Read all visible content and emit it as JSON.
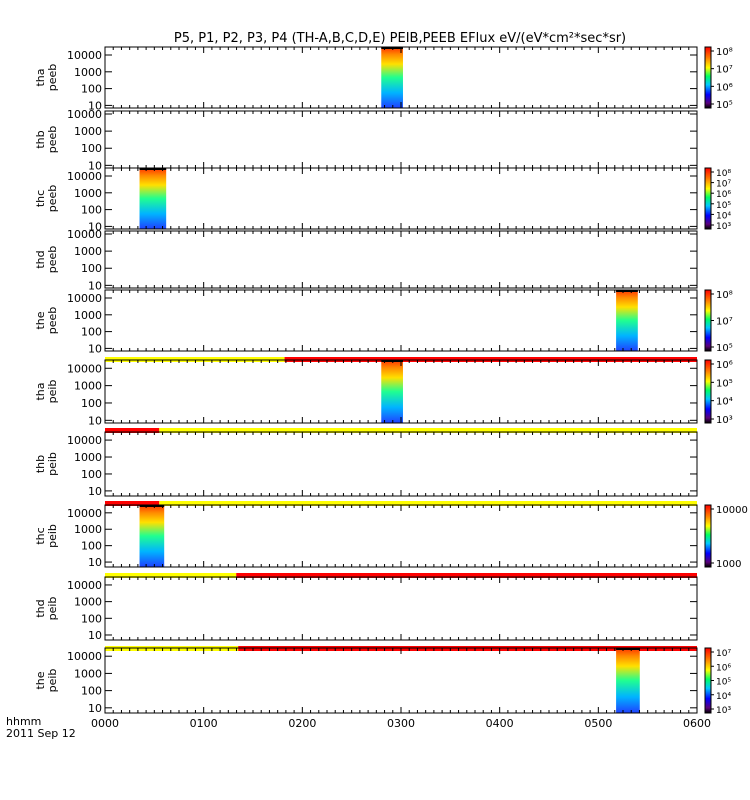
{
  "title": "P5, P1, P2, P3, P4 (TH-A,B,C,D,E) PEIB,PEEB EFlux eV/(eV*cm²*sec*sr)",
  "time_axis": {
    "label_line1": "hhmm",
    "label_line2": "2011 Sep 12",
    "ticks": [
      "0000",
      "0100",
      "0200",
      "0300",
      "0400",
      "0500",
      "0600"
    ],
    "range_hours": [
      0,
      6
    ]
  },
  "colors": {
    "flag_yellow": "#ffff00",
    "flag_red": "#ff0000"
  },
  "chart_data": [
    {
      "type": "heatmap",
      "probe": "tha",
      "product": "peeb",
      "ylabel": [
        "tha",
        "peeb"
      ],
      "yscale": "log",
      "ylim": [
        7,
        30000
      ],
      "yticks": [
        "10",
        "100",
        "1000",
        "10000"
      ],
      "data_interval_hours": [
        2.8,
        3.02
      ],
      "colorbar": [
        "10⁵",
        "10⁶",
        "10⁷",
        "10⁸"
      ],
      "clim_exp": [
        5,
        8
      ]
    },
    {
      "type": "heatmap",
      "probe": "thb",
      "product": "peeb",
      "ylabel": [
        "thb",
        "peeb"
      ],
      "yscale": "log",
      "ylim": [
        7,
        15000
      ],
      "yticks": [
        "10",
        "100",
        "1000",
        "10000"
      ],
      "data_interval_hours": null,
      "colorbar": []
    },
    {
      "type": "heatmap",
      "probe": "thc",
      "product": "peeb",
      "ylabel": [
        "thc",
        "peeb"
      ],
      "yscale": "log",
      "ylim": [
        7,
        30000
      ],
      "yticks": [
        "10",
        "100",
        "1000",
        "10000"
      ],
      "data_interval_hours": [
        0.35,
        0.62
      ],
      "colorbar": [
        "10³",
        "10⁴",
        "10⁵",
        "10⁶",
        "10⁷",
        "10⁸"
      ],
      "clim_exp": [
        3,
        8
      ]
    },
    {
      "type": "heatmap",
      "probe": "thd",
      "product": "peeb",
      "ylabel": [
        "thd",
        "peeb"
      ],
      "yscale": "log",
      "ylim": [
        7,
        15000
      ],
      "yticks": [
        "10",
        "100",
        "1000",
        "10000"
      ],
      "data_interval_hours": null,
      "colorbar": []
    },
    {
      "type": "heatmap",
      "probe": "the",
      "product": "peeb",
      "ylabel": [
        "the",
        "peeb"
      ],
      "yscale": "log",
      "ylim": [
        7,
        30000
      ],
      "yticks": [
        "10",
        "100",
        "1000",
        "10000"
      ],
      "data_interval_hours": [
        5.18,
        5.4
      ],
      "colorbar": [
        "10⁵",
        "10⁷",
        "10⁸"
      ],
      "clim_exp": [
        4.5,
        8
      ]
    },
    {
      "type": "heatmap",
      "probe": "tha",
      "product": "peib",
      "ylabel": [
        "tha",
        "peib"
      ],
      "yscale": "log",
      "ylim": [
        7,
        30000
      ],
      "yticks": [
        "10",
        "100",
        "1000",
        "10000"
      ],
      "data_interval_hours": [
        2.8,
        3.02
      ],
      "colorbar": [
        "10³",
        "10⁴",
        "10⁵",
        "10⁶"
      ],
      "clim_exp": [
        3,
        6.5
      ],
      "flag_bar": [
        {
          "start": 0,
          "end": 1.82,
          "color": "yellow"
        },
        {
          "start": 1.82,
          "end": 6,
          "color": "red"
        }
      ]
    },
    {
      "type": "heatmap",
      "probe": "thb",
      "product": "peib",
      "ylabel": [
        "thb",
        "peib"
      ],
      "yscale": "log",
      "ylim": [
        5,
        30000
      ],
      "yticks": [
        "10",
        "100",
        "1000",
        "10000"
      ],
      "data_interval_hours": null,
      "colorbar": [],
      "flag_bar": [
        {
          "start": 0,
          "end": 0.55,
          "color": "red"
        },
        {
          "start": 0.55,
          "end": 6,
          "color": "yellow"
        }
      ]
    },
    {
      "type": "heatmap",
      "probe": "thc",
      "product": "peib",
      "ylabel": [
        "thc",
        "peib"
      ],
      "yscale": "log",
      "ylim": [
        5,
        30000
      ],
      "yticks": [
        "10",
        "100",
        "1000",
        "10000"
      ],
      "data_interval_hours": [
        0.35,
        0.6
      ],
      "colorbar": [
        "1000",
        "10000"
      ],
      "clim_exp": [
        2.7,
        4.7
      ],
      "flag_bar": [
        {
          "start": 0,
          "end": 0.55,
          "color": "red"
        },
        {
          "start": 0.55,
          "end": 6,
          "color": "yellow"
        }
      ]
    },
    {
      "type": "heatmap",
      "probe": "thd",
      "product": "peib",
      "ylabel": [
        "thd",
        "peib"
      ],
      "yscale": "log",
      "ylim": [
        5,
        30000
      ],
      "yticks": [
        "10",
        "100",
        "1000",
        "10000"
      ],
      "data_interval_hours": null,
      "colorbar": [],
      "flag_bar": [
        {
          "start": 0,
          "end": 1.33,
          "color": "yellow"
        },
        {
          "start": 1.33,
          "end": 6,
          "color": "red"
        }
      ]
    },
    {
      "type": "heatmap",
      "probe": "the",
      "product": "peib",
      "ylabel": [
        "the",
        "peib"
      ],
      "yscale": "log",
      "ylim": [
        5,
        30000
      ],
      "yticks": [
        "10",
        "100",
        "1000",
        "10000"
      ],
      "data_interval_hours": [
        5.18,
        5.42
      ],
      "colorbar": [
        "10³",
        "10⁴",
        "10⁵",
        "10⁶",
        "10⁷"
      ],
      "clim_exp": [
        2.8,
        7.2
      ],
      "flag_bar": [
        {
          "start": 0,
          "end": 1.35,
          "color": "yellow"
        },
        {
          "start": 1.35,
          "end": 6,
          "color": "red"
        }
      ]
    }
  ]
}
